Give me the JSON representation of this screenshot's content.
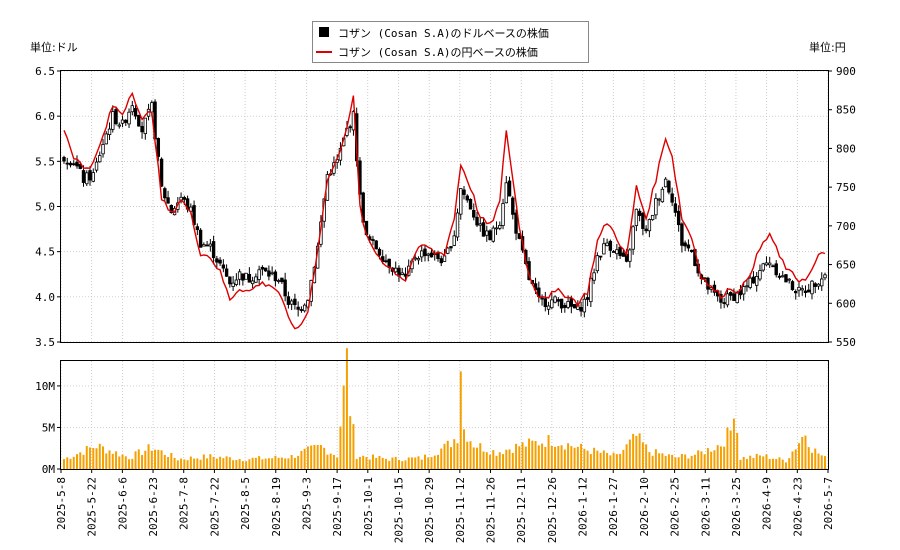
{
  "legend": {
    "usd_label": "コザン (Cosan S.A)のドルベースの株価",
    "jpy_label": "コザン (Cosan S.A)の円ベースの株価"
  },
  "unit_left": "単位:ドル",
  "unit_right": "単位:円",
  "colors": {
    "candle": "#000000",
    "yen_line": "#dd0000",
    "volume": "#f5a000"
  },
  "chart_data": [
    {
      "type": "line",
      "description_series": [
        "コザン (Cosan S.A)のドルベースの株価",
        "コザン (Cosan S.A)の円ベースの株価"
      ],
      "x_tick_labels": [
        "2025-5-8",
        "2025-5-22",
        "2025-6-6",
        "2025-6-23",
        "2025-7-8",
        "2025-7-22",
        "2025-8-5",
        "2025-8-19",
        "2025-9-3",
        "2025-9-17",
        "2025-10-1",
        "2025-10-15",
        "2025-10-29",
        "2025-11-12",
        "2025-11-26",
        "2025-12-11",
        "2025-12-26",
        "2026-1-12",
        "2026-1-27",
        "2026-2-10",
        "2026-2-25",
        "2026-3-11",
        "2026-3-25",
        "2026-4-9",
        "2026-4-23",
        "2026-5-7"
      ],
      "y_left_ticks": [
        "3.5",
        "4.0",
        "4.5",
        "5.0",
        "5.5",
        "6.0",
        "6.5"
      ],
      "y_left_range": [
        3.5,
        6.5
      ],
      "y_right_ticks": [
        "550",
        "600",
        "650",
        "700",
        "750",
        "800",
        "850",
        "900"
      ],
      "y_right_range": [
        550,
        900
      ],
      "usd_close_anchors": [
        [
          0,
          5.55
        ],
        [
          3,
          5.5
        ],
        [
          6,
          5.3
        ],
        [
          9,
          5.35
        ],
        [
          12,
          5.7
        ],
        [
          15,
          6.0
        ],
        [
          18,
          5.9
        ],
        [
          21,
          6.15
        ],
        [
          24,
          5.85
        ],
        [
          27,
          6.1
        ],
        [
          30,
          5.2
        ],
        [
          33,
          4.95
        ],
        [
          36,
          5.1
        ],
        [
          39,
          4.95
        ],
        [
          42,
          4.6
        ],
        [
          45,
          4.55
        ],
        [
          48,
          4.35
        ],
        [
          51,
          4.15
        ],
        [
          54,
          4.25
        ],
        [
          57,
          4.2
        ],
        [
          60,
          4.3
        ],
        [
          63,
          4.25
        ],
        [
          66,
          4.2
        ],
        [
          69,
          3.95
        ],
        [
          72,
          3.85
        ],
        [
          75,
          4.0
        ],
        [
          78,
          4.55
        ],
        [
          81,
          5.35
        ],
        [
          84,
          5.5
        ],
        [
          87,
          5.85
        ],
        [
          89,
          6.0
        ],
        [
          91,
          5.1
        ],
        [
          93,
          4.65
        ],
        [
          96,
          4.55
        ],
        [
          99,
          4.4
        ],
        [
          102,
          4.3
        ],
        [
          105,
          4.2
        ],
        [
          108,
          4.45
        ],
        [
          111,
          4.5
        ],
        [
          114,
          4.45
        ],
        [
          117,
          4.4
        ],
        [
          120,
          4.7
        ],
        [
          122,
          5.2
        ],
        [
          125,
          5.0
        ],
        [
          128,
          4.75
        ],
        [
          131,
          4.65
        ],
        [
          134,
          4.85
        ],
        [
          136,
          5.3
        ],
        [
          138,
          4.9
        ],
        [
          140,
          4.6
        ],
        [
          143,
          4.2
        ],
        [
          146,
          3.95
        ],
        [
          149,
          3.95
        ],
        [
          152,
          3.95
        ],
        [
          155,
          3.9
        ],
        [
          158,
          3.85
        ],
        [
          161,
          4.0
        ],
        [
          164,
          4.45
        ],
        [
          167,
          4.6
        ],
        [
          170,
          4.5
        ],
        [
          173,
          4.35
        ],
        [
          176,
          4.95
        ],
        [
          179,
          4.7
        ],
        [
          182,
          5.05
        ],
        [
          185,
          5.3
        ],
        [
          187,
          5.1
        ],
        [
          190,
          4.6
        ],
        [
          193,
          4.5
        ],
        [
          196,
          4.2
        ],
        [
          199,
          4.05
        ],
        [
          202,
          3.95
        ],
        [
          205,
          4.0
        ],
        [
          208,
          4.05
        ],
        [
          211,
          4.15
        ],
        [
          214,
          4.3
        ],
        [
          217,
          4.4
        ],
        [
          220,
          4.25
        ],
        [
          223,
          4.15
        ],
        [
          226,
          4.05
        ],
        [
          229,
          4.1
        ],
        [
          232,
          4.2
        ],
        [
          234,
          4.25
        ]
      ],
      "jpy_close_anchors": [
        [
          0,
          825
        ],
        [
          3,
          790
        ],
        [
          6,
          775
        ],
        [
          9,
          780
        ],
        [
          12,
          815
        ],
        [
          15,
          855
        ],
        [
          18,
          845
        ],
        [
          21,
          875
        ],
        [
          24,
          835
        ],
        [
          27,
          850
        ],
        [
          30,
          735
        ],
        [
          33,
          715
        ],
        [
          36,
          735
        ],
        [
          39,
          715
        ],
        [
          42,
          665
        ],
        [
          45,
          660
        ],
        [
          48,
          640
        ],
        [
          51,
          605
        ],
        [
          54,
          620
        ],
        [
          57,
          615
        ],
        [
          60,
          625
        ],
        [
          63,
          625
        ],
        [
          66,
          615
        ],
        [
          69,
          580
        ],
        [
          72,
          565
        ],
        [
          75,
          590
        ],
        [
          78,
          670
        ],
        [
          81,
          760
        ],
        [
          84,
          785
        ],
        [
          87,
          830
        ],
        [
          89,
          865
        ],
        [
          91,
          725
        ],
        [
          93,
          685
        ],
        [
          96,
          665
        ],
        [
          99,
          650
        ],
        [
          102,
          640
        ],
        [
          105,
          630
        ],
        [
          108,
          665
        ],
        [
          111,
          675
        ],
        [
          114,
          665
        ],
        [
          117,
          665
        ],
        [
          120,
          710
        ],
        [
          122,
          780
        ],
        [
          125,
          750
        ],
        [
          128,
          710
        ],
        [
          131,
          700
        ],
        [
          134,
          730
        ],
        [
          136,
          825
        ],
        [
          138,
          760
        ],
        [
          140,
          700
        ],
        [
          143,
          635
        ],
        [
          146,
          610
        ],
        [
          149,
          610
        ],
        [
          152,
          615
        ],
        [
          155,
          610
        ],
        [
          158,
          600
        ],
        [
          161,
          615
        ],
        [
          164,
          680
        ],
        [
          167,
          705
        ],
        [
          170,
          685
        ],
        [
          173,
          660
        ],
        [
          176,
          750
        ],
        [
          179,
          710
        ],
        [
          182,
          760
        ],
        [
          185,
          815
        ],
        [
          187,
          790
        ],
        [
          190,
          710
        ],
        [
          193,
          685
        ],
        [
          196,
          635
        ],
        [
          199,
          620
        ],
        [
          202,
          610
        ],
        [
          205,
          620
        ],
        [
          208,
          615
        ],
        [
          211,
          640
        ],
        [
          214,
          670
        ],
        [
          217,
          690
        ],
        [
          220,
          660
        ],
        [
          223,
          640
        ],
        [
          226,
          630
        ],
        [
          229,
          635
        ],
        [
          232,
          660
        ],
        [
          234,
          665
        ]
      ],
      "volume": {
        "type": "bar",
        "y_ticks": [
          "0M",
          "5M",
          "10M"
        ],
        "y_range_millions": [
          0,
          13
        ],
        "anchors_millions": [
          [
            0,
            1.2
          ],
          [
            10,
            2.8
          ],
          [
            20,
            1.4
          ],
          [
            27,
            2.6
          ],
          [
            35,
            1.2
          ],
          [
            45,
            1.5
          ],
          [
            55,
            1.2
          ],
          [
            63,
            1.3
          ],
          [
            70,
            1.5
          ],
          [
            75,
            2.2
          ],
          [
            79,
            2.7
          ],
          [
            84,
            1.6
          ],
          [
            87,
            13.0
          ],
          [
            88,
            7.2
          ],
          [
            90,
            1.6
          ],
          [
            100,
            1.2
          ],
          [
            110,
            1.3
          ],
          [
            117,
            2.6
          ],
          [
            119,
            3.2
          ],
          [
            121,
            4.0
          ],
          [
            122,
            13.2
          ],
          [
            123,
            4.8
          ],
          [
            126,
            3.0
          ],
          [
            133,
            2.0
          ],
          [
            140,
            2.8
          ],
          [
            150,
            3.5
          ],
          [
            160,
            2.4
          ],
          [
            170,
            1.5
          ],
          [
            176,
            3.9
          ],
          [
            180,
            2.1
          ],
          [
            188,
            1.4
          ],
          [
            195,
            1.8
          ],
          [
            202,
            3.0
          ],
          [
            205,
            4.6
          ],
          [
            206,
            7.9
          ],
          [
            208,
            1.3
          ],
          [
            215,
            1.6
          ],
          [
            222,
            1.0
          ],
          [
            228,
            4.4
          ],
          [
            230,
            2.5
          ],
          [
            234,
            1.3
          ]
        ]
      }
    }
  ]
}
